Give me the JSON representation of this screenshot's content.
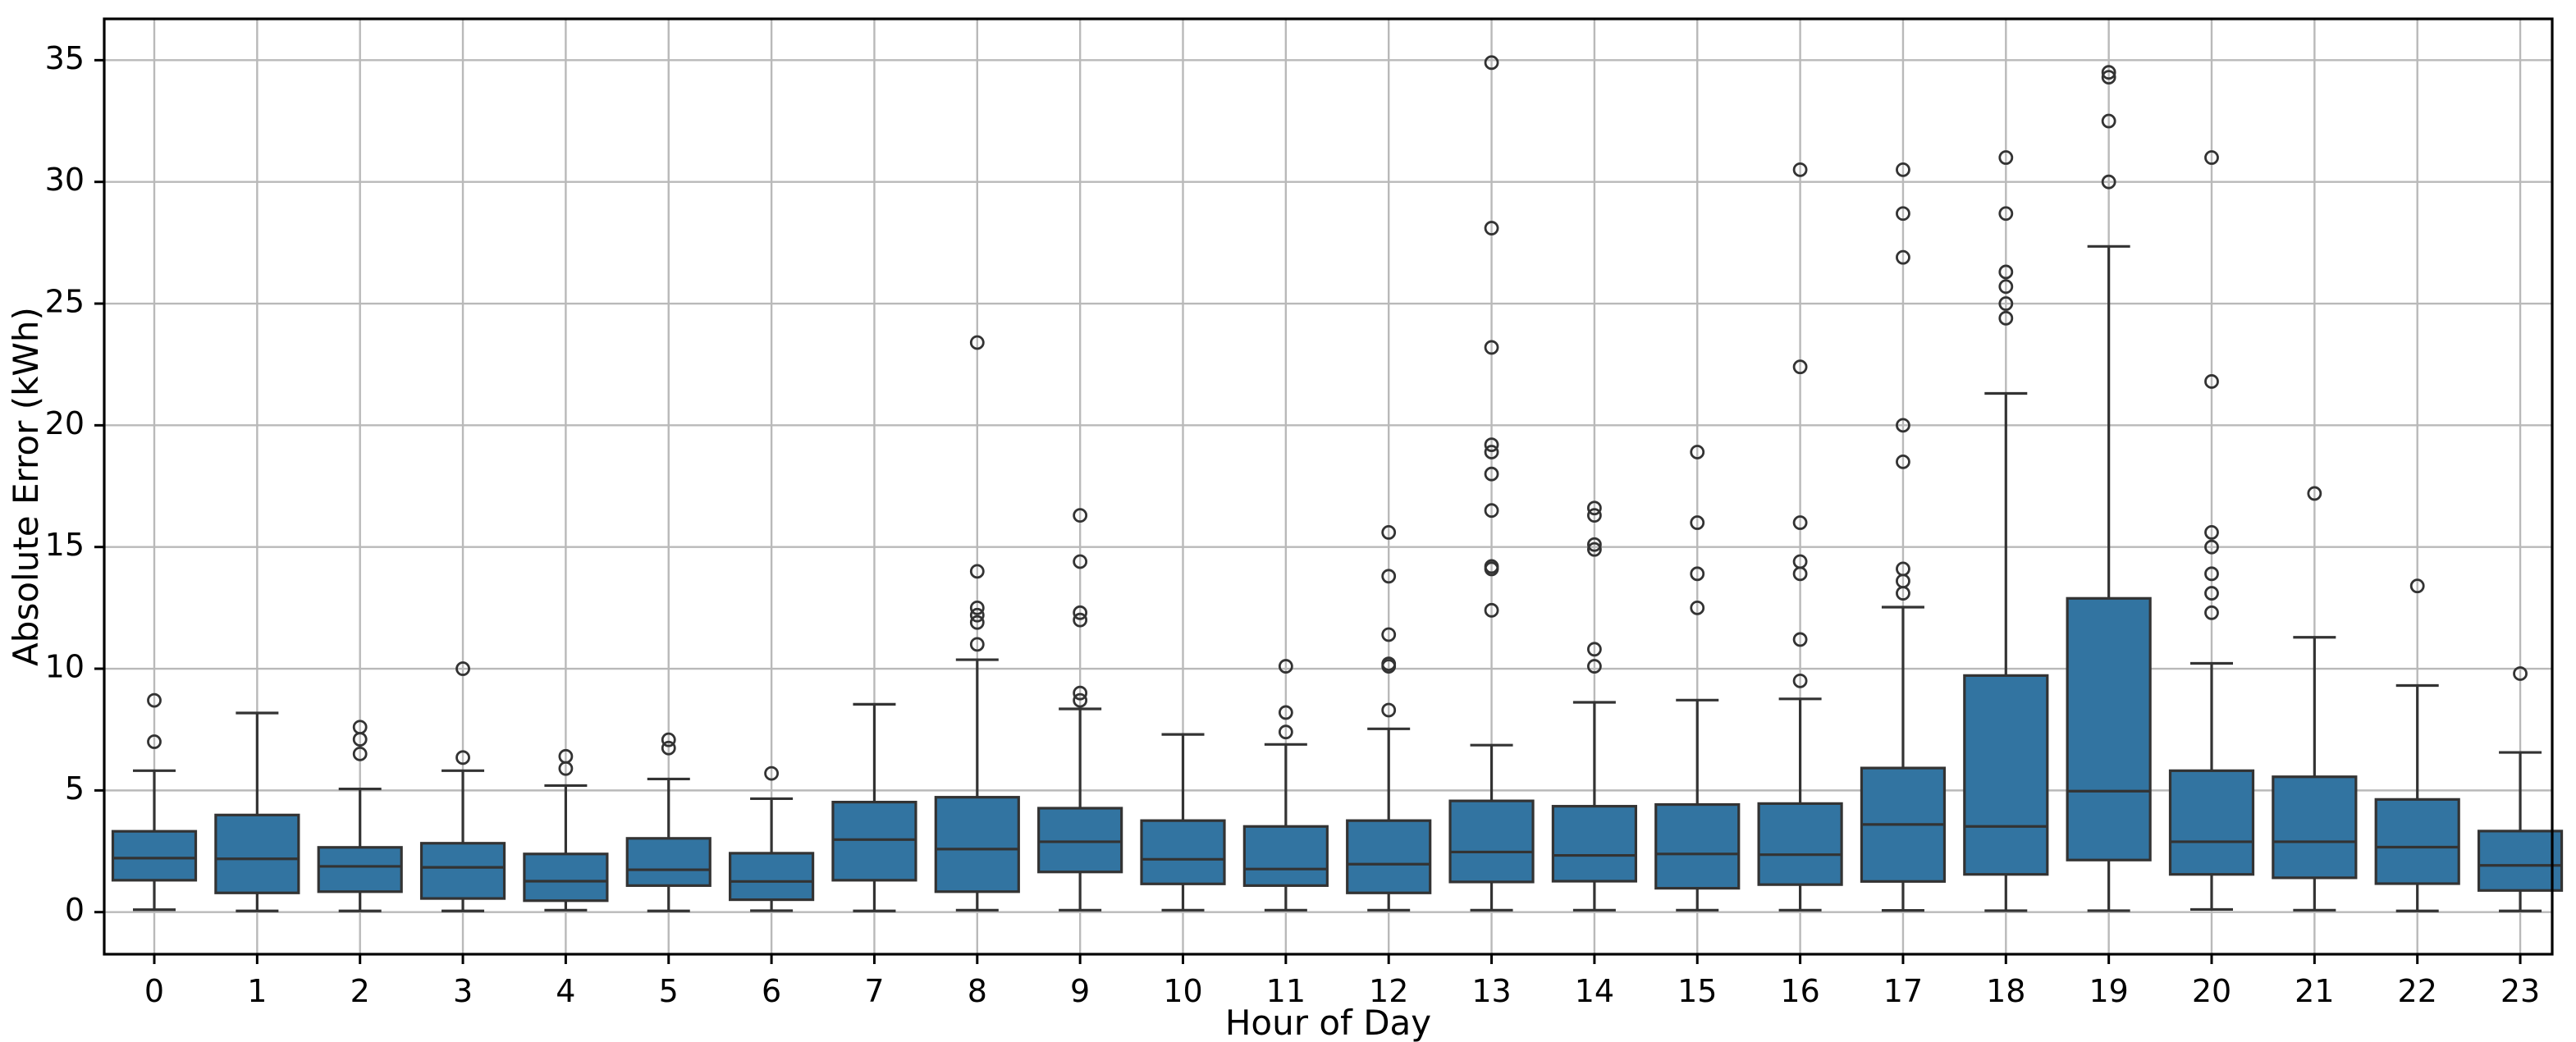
{
  "figure": {
    "background": "#ffffff"
  },
  "chart_data": {
    "type": "box",
    "title": "",
    "xlabel": "Hour of Day",
    "ylabel": "Absolute Error (kWh)",
    "categories": [
      "0",
      "1",
      "2",
      "3",
      "4",
      "5",
      "6",
      "7",
      "8",
      "9",
      "10",
      "11",
      "12",
      "13",
      "14",
      "15",
      "16",
      "17",
      "18",
      "19",
      "20",
      "21",
      "22",
      "23"
    ],
    "yticks": [
      0,
      5,
      10,
      15,
      20,
      25,
      30,
      35
    ],
    "ylim": [
      -1.75,
      36.65
    ],
    "grid": true,
    "legend": false,
    "colors": {
      "box_fill": "#3274a1",
      "line": "#333333",
      "grid": "#b9b9b9",
      "spine": "#000000",
      "background": "#ffffff"
    },
    "series": [
      {
        "hour": "0",
        "whislo": 0.1,
        "q1": 1.31,
        "med": 2.22,
        "q3": 3.32,
        "whishi": 5.81,
        "fliers": [
          7.0,
          8.7
        ]
      },
      {
        "hour": "1",
        "whislo": 0.05,
        "q1": 0.79,
        "med": 2.19,
        "q3": 3.99,
        "whishi": 8.18,
        "fliers": []
      },
      {
        "hour": "2",
        "whislo": 0.05,
        "q1": 0.84,
        "med": 1.88,
        "q3": 2.66,
        "whishi": 5.06,
        "fliers": [
          6.5,
          7.1,
          7.6
        ]
      },
      {
        "hour": "3",
        "whislo": 0.05,
        "q1": 0.56,
        "med": 1.84,
        "q3": 2.83,
        "whishi": 5.81,
        "fliers": [
          6.35,
          10.0
        ]
      },
      {
        "hour": "4",
        "whislo": 0.08,
        "q1": 0.47,
        "med": 1.27,
        "q3": 2.39,
        "whishi": 5.2,
        "fliers": [
          5.9,
          6.4
        ]
      },
      {
        "hour": "5",
        "whislo": 0.05,
        "q1": 1.09,
        "med": 1.74,
        "q3": 3.03,
        "whishi": 5.47,
        "fliers": [
          6.74,
          7.08
        ]
      },
      {
        "hour": "6",
        "whislo": 0.06,
        "q1": 0.51,
        "med": 1.26,
        "q3": 2.42,
        "whishi": 4.66,
        "fliers": [
          5.7
        ]
      },
      {
        "hour": "7",
        "whislo": 0.05,
        "q1": 1.31,
        "med": 2.98,
        "q3": 4.52,
        "whishi": 8.54,
        "fliers": []
      },
      {
        "hour": "8",
        "whislo": 0.08,
        "q1": 0.84,
        "med": 2.59,
        "q3": 4.72,
        "whishi": 10.37,
        "fliers": [
          11.0,
          11.9,
          12.2,
          12.5,
          14.0,
          23.4
        ]
      },
      {
        "hour": "9",
        "whislo": 0.08,
        "q1": 1.65,
        "med": 2.89,
        "q3": 4.27,
        "whishi": 8.35,
        "fliers": [
          8.7,
          9.0,
          12.0,
          12.3,
          14.4,
          16.3
        ]
      },
      {
        "hour": "10",
        "whislo": 0.08,
        "q1": 1.16,
        "med": 2.17,
        "q3": 3.76,
        "whishi": 7.3,
        "fliers": []
      },
      {
        "hour": "11",
        "whislo": 0.08,
        "q1": 1.09,
        "med": 1.77,
        "q3": 3.52,
        "whishi": 6.89,
        "fliers": [
          7.4,
          8.2,
          10.1
        ]
      },
      {
        "hour": "12",
        "whislo": 0.08,
        "q1": 0.79,
        "med": 1.97,
        "q3": 3.76,
        "whishi": 7.53,
        "fliers": [
          8.3,
          10.1,
          10.2,
          11.4,
          13.8,
          15.6
        ]
      },
      {
        "hour": "13",
        "whislo": 0.08,
        "q1": 1.24,
        "med": 2.47,
        "q3": 4.57,
        "whishi": 6.86,
        "fliers": [
          12.4,
          14.1,
          14.2,
          16.5,
          18.0,
          18.9,
          19.2,
          23.2,
          28.1,
          34.9
        ]
      },
      {
        "hour": "14",
        "whislo": 0.08,
        "q1": 1.27,
        "med": 2.33,
        "q3": 4.35,
        "whishi": 8.62,
        "fliers": [
          10.1,
          10.8,
          14.9,
          15.1,
          16.3,
          16.6
        ]
      },
      {
        "hour": "15",
        "whislo": 0.08,
        "q1": 0.98,
        "med": 2.39,
        "q3": 4.42,
        "whishi": 8.71,
        "fliers": [
          12.5,
          13.9,
          16.0,
          18.9
        ]
      },
      {
        "hour": "16",
        "whislo": 0.08,
        "q1": 1.13,
        "med": 2.36,
        "q3": 4.46,
        "whishi": 8.76,
        "fliers": [
          9.5,
          11.2,
          13.9,
          14.4,
          16.0,
          22.4,
          30.5
        ]
      },
      {
        "hour": "17",
        "whislo": 0.07,
        "q1": 1.26,
        "med": 3.6,
        "q3": 5.92,
        "whishi": 12.53,
        "fliers": [
          13.1,
          13.6,
          14.1,
          18.5,
          20.0,
          26.9,
          28.7,
          30.5
        ]
      },
      {
        "hour": "18",
        "whislo": 0.06,
        "q1": 1.55,
        "med": 3.52,
        "q3": 9.72,
        "whishi": 21.31,
        "fliers": [
          24.4,
          25.0,
          25.7,
          26.3,
          28.7,
          31.0
        ]
      },
      {
        "hour": "19",
        "whislo": 0.06,
        "q1": 2.14,
        "med": 4.97,
        "q3": 12.89,
        "whishi": 27.35,
        "fliers": [
          30.0,
          32.5,
          34.3,
          34.5
        ]
      },
      {
        "hour": "20",
        "whislo": 0.11,
        "q1": 1.55,
        "med": 2.89,
        "q3": 5.81,
        "whishi": 10.22,
        "fliers": [
          12.3,
          13.1,
          13.9,
          15.0,
          15.6,
          21.8,
          31.0
        ]
      },
      {
        "hour": "21",
        "whislo": 0.08,
        "q1": 1.41,
        "med": 2.89,
        "q3": 5.56,
        "whishi": 11.29,
        "fliers": [
          17.2
        ]
      },
      {
        "hour": "22",
        "whislo": 0.05,
        "q1": 1.17,
        "med": 2.67,
        "q3": 4.63,
        "whishi": 9.31,
        "fliers": [
          13.4
        ]
      },
      {
        "hour": "23",
        "whislo": 0.05,
        "q1": 0.89,
        "med": 1.92,
        "q3": 3.33,
        "whishi": 6.56,
        "fliers": [
          9.8
        ]
      }
    ]
  }
}
